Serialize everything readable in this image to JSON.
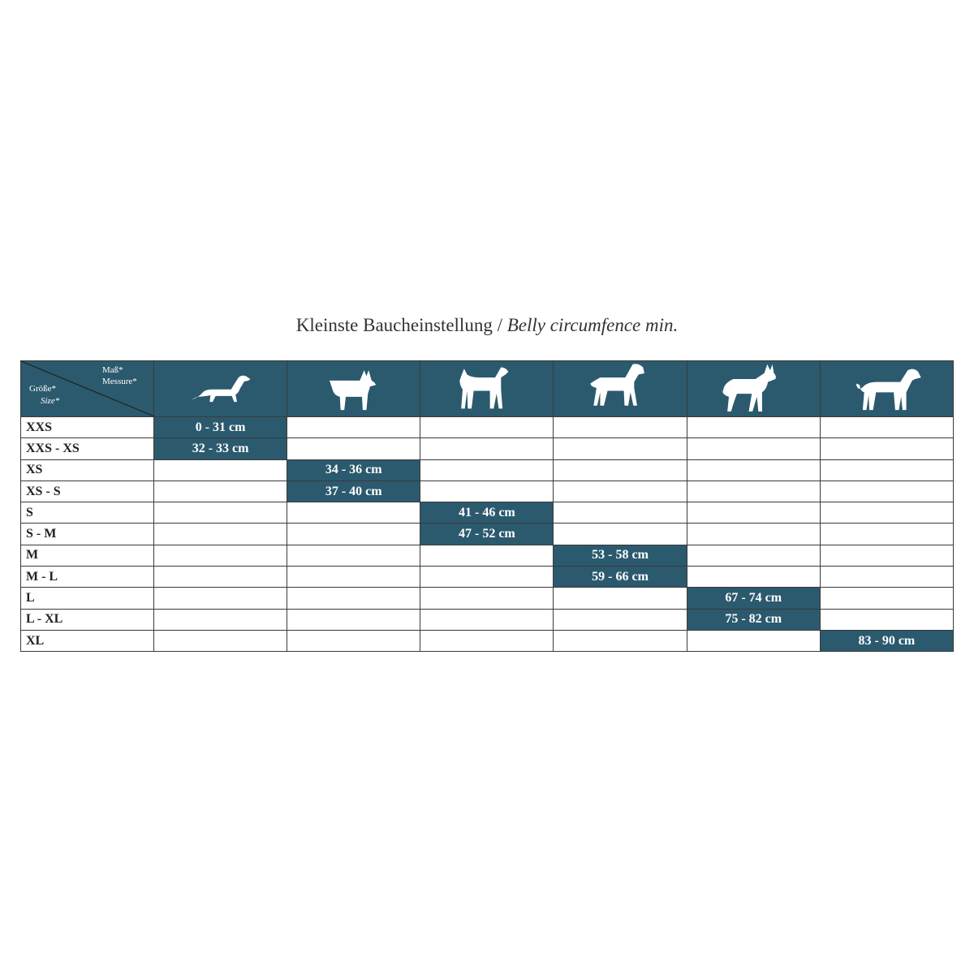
{
  "title": {
    "de": "Kleinste Baucheinstellung /",
    "en": "Belly circumfence min."
  },
  "header": {
    "measure_de": "Maß*",
    "measure_en": "Messure*",
    "size_de": "Größe*",
    "size_en": "Size*",
    "dogs": [
      "dachshund-icon",
      "terrier-icon",
      "medium-dog-icon",
      "schnauzer-icon",
      "shepherd-icon",
      "large-dog-icon"
    ]
  },
  "colors": {
    "accent": "#2b5a6e"
  },
  "rows": [
    {
      "size": "XXS",
      "col": 0,
      "value": "0 - 31 cm"
    },
    {
      "size": "XXS - XS",
      "col": 0,
      "value": "32 - 33 cm"
    },
    {
      "size": "XS",
      "col": 1,
      "value": "34 - 36 cm"
    },
    {
      "size": "XS - S",
      "col": 1,
      "value": "37 - 40 cm"
    },
    {
      "size": "S",
      "col": 2,
      "value": "41 - 46 cm"
    },
    {
      "size": "S - M",
      "col": 2,
      "value": "47 - 52 cm"
    },
    {
      "size": "M",
      "col": 3,
      "value": "53 - 58 cm"
    },
    {
      "size": "M - L",
      "col": 3,
      "value": "59 - 66 cm"
    },
    {
      "size": "L",
      "col": 4,
      "value": "67 - 74 cm"
    },
    {
      "size": "L - XL",
      "col": 4,
      "value": "75 - 82 cm"
    },
    {
      "size": "XL",
      "col": 5,
      "value": "83 - 90 cm"
    }
  ]
}
